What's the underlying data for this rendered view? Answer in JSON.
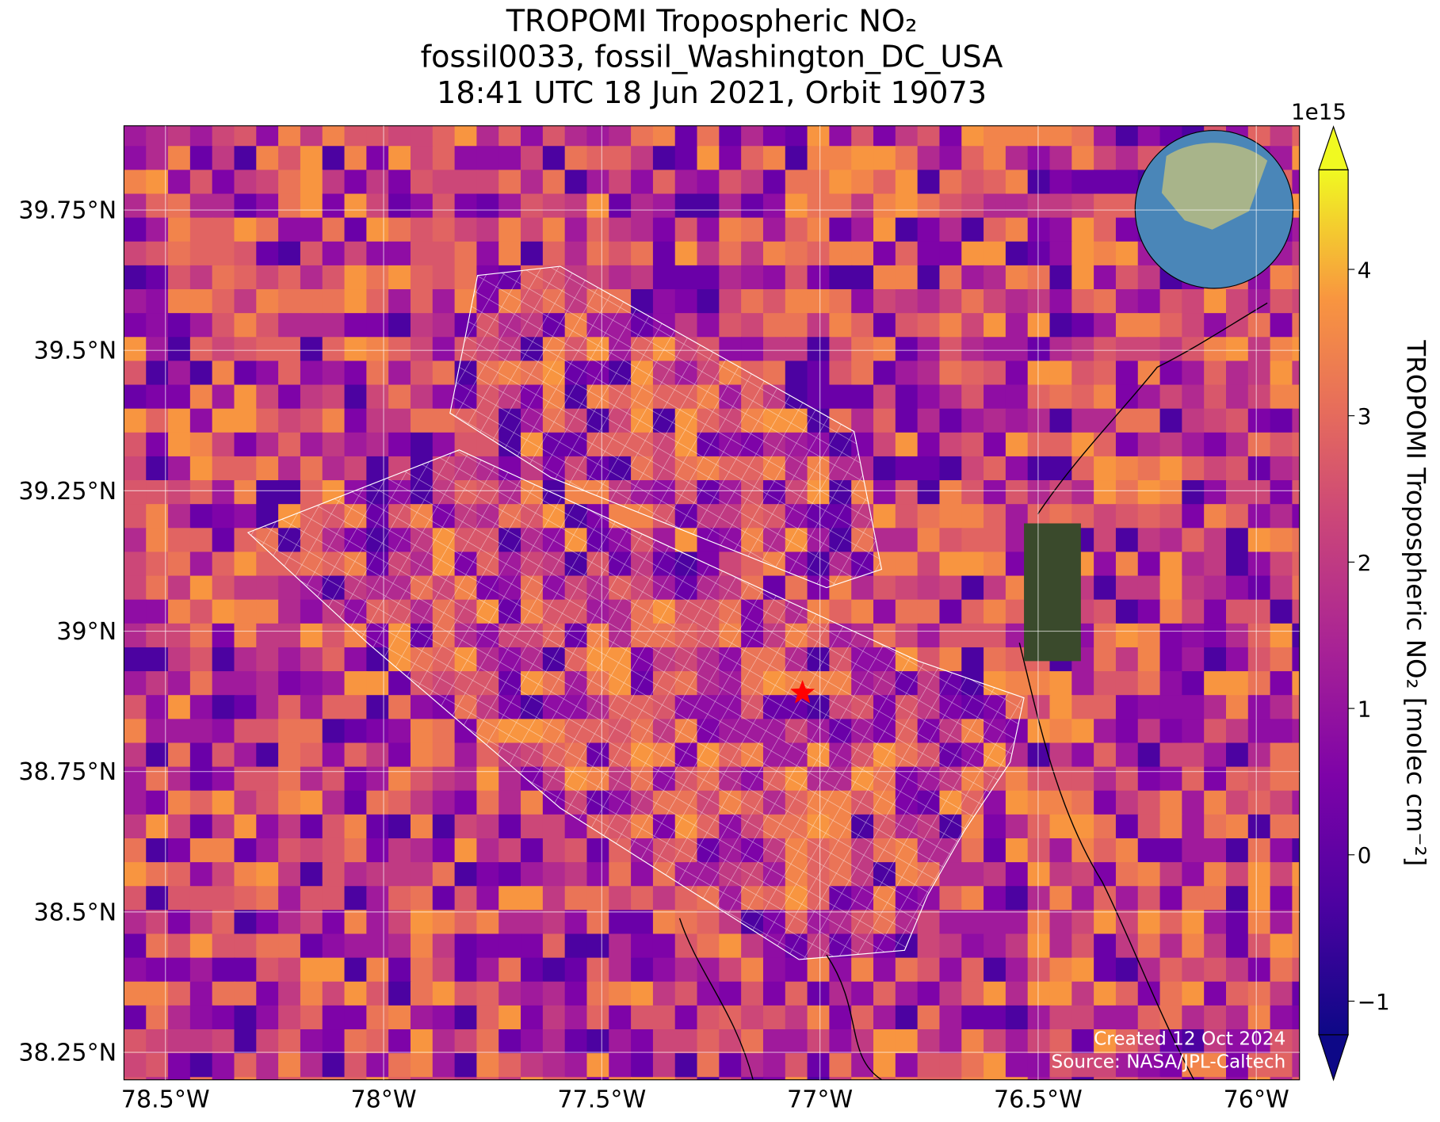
{
  "chart_data": {
    "type": "map",
    "title": [
      "TROPOMI Tropospheric NO₂",
      "fossil0033, fossil_Washington_DC_USA",
      "18:41 UTC 18 Jun 2021, Orbit 19073"
    ],
    "xlim": [
      -78.595,
      -75.901
    ],
    "ylim": [
      38.201,
      39.9
    ],
    "xticks": [
      {
        "value": -78.5,
        "label": "78.5°W"
      },
      {
        "value": -78,
        "label": "78°W"
      },
      {
        "value": -77.5,
        "label": "77.5°W"
      },
      {
        "value": -77,
        "label": "77°W"
      },
      {
        "value": -76.5,
        "label": "76.5°W"
      },
      {
        "value": -76,
        "label": "76°W"
      }
    ],
    "yticks": [
      {
        "value": 38.25,
        "label": "38.25°N"
      },
      {
        "value": 38.5,
        "label": "38.5°N"
      },
      {
        "value": 38.75,
        "label": "38.75°N"
      },
      {
        "value": 39,
        "label": "39°N"
      },
      {
        "value": 39.25,
        "label": "39.25°N"
      },
      {
        "value": 39.5,
        "label": "39.5°N"
      },
      {
        "value": 39.75,
        "label": "39.75°N"
      }
    ],
    "grid": true,
    "colorbar": {
      "label": "TROPOMI Tropospheric NO₂ [molec cm⁻²]",
      "exponent": "1e15",
      "lim": [
        -1.23,
        4.68
      ],
      "ticks": [
        {
          "value": -1,
          "label": "−1"
        },
        0,
        1,
        2,
        3,
        4
      ],
      "colormap": "plasma"
    },
    "site": {
      "lon": -77.04,
      "lat": 38.89,
      "color": "#ff0000"
    },
    "credits": [
      "Created 12 Oct 2024",
      "Source: NASA/JPL-Caltech"
    ]
  }
}
